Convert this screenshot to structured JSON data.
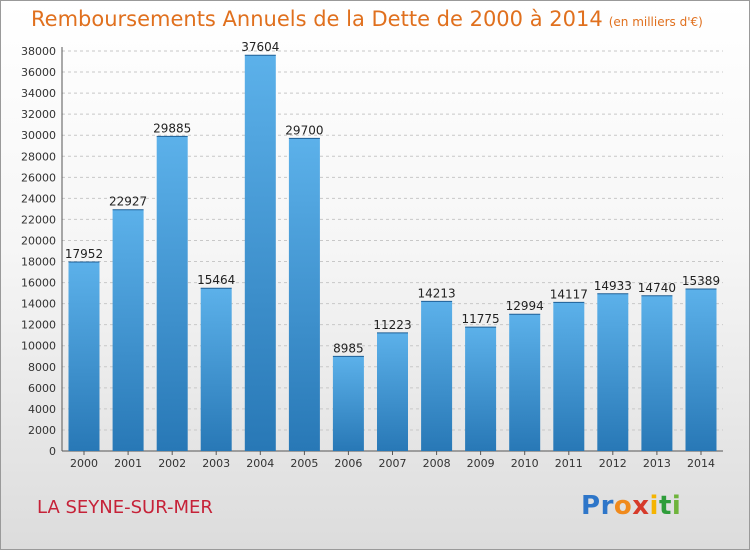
{
  "title": "Remboursements Annuels de la Dette de 2000 à 2014",
  "subtitle": "(en milliers d'€)",
  "location": "LA SEYNE-SUR-MER",
  "logo": {
    "letters": [
      "P",
      "r",
      "o",
      "x",
      "i",
      "t",
      "i"
    ],
    "colors": [
      "#2e76c9",
      "#2e76c9",
      "#f08a1c",
      "#d63a2a",
      "#f5b400",
      "#2e9d3a",
      "#6fb43c"
    ]
  },
  "colors": {
    "title": "#e0701e",
    "location": "#c62238",
    "bar_light": "#5cb1ea",
    "bar_dark": "#2878b6",
    "grid": "#c8c8c8"
  },
  "chart_data": {
    "type": "bar",
    "categories": [
      "2000",
      "2001",
      "2002",
      "2003",
      "2004",
      "2005",
      "2006",
      "2007",
      "2008",
      "2009",
      "2010",
      "2011",
      "2012",
      "2013",
      "2014"
    ],
    "values": [
      17952,
      22927,
      29885,
      15464,
      37604,
      29700,
      8985,
      11223,
      14213,
      11775,
      12994,
      14117,
      14933,
      14740,
      15389
    ],
    "ylim": [
      0,
      38000
    ],
    "ytick_step": 2000,
    "grid": true
  }
}
